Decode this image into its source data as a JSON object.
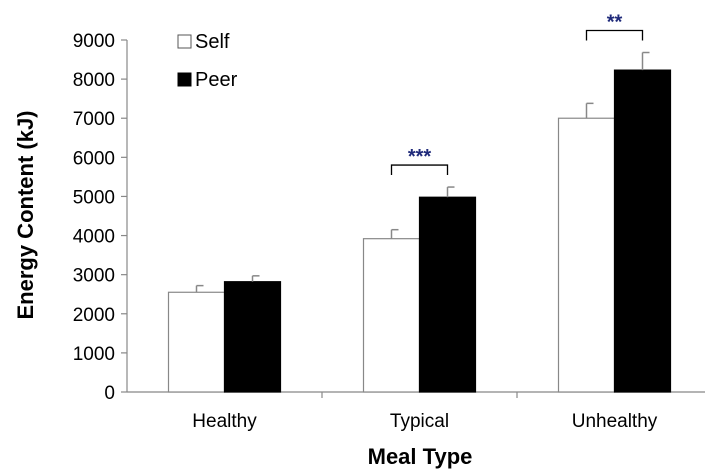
{
  "chart_data": {
    "type": "bar",
    "title": "",
    "xlabel": "Meal Type",
    "ylabel": "Energy Content (kJ)",
    "ylim": [
      0,
      9000
    ],
    "yticks": [
      "0",
      "1000",
      "2000",
      "3000",
      "4000",
      "5000",
      "6000",
      "7000",
      "8000",
      "9000"
    ],
    "categories": [
      "Healthy",
      "Typical",
      "Unhealthy"
    ],
    "series": [
      {
        "name": "Self",
        "values": [
          2550,
          3920,
          7000
        ],
        "errors": [
          170,
          230,
          380
        ],
        "fill": "#ffffff",
        "stroke": "#000000"
      },
      {
        "name": "Peer",
        "values": [
          2820,
          4980,
          8230
        ],
        "errors": [
          150,
          260,
          450
        ],
        "fill": "#000000",
        "stroke": "#000000"
      }
    ],
    "significance": [
      {
        "category": "Typical",
        "label": "***",
        "color": "#1f2a7a"
      },
      {
        "category": "Unhealthy",
        "label": "**",
        "color": "#1f2a7a"
      }
    ],
    "legend": "top-left",
    "grid": false
  }
}
